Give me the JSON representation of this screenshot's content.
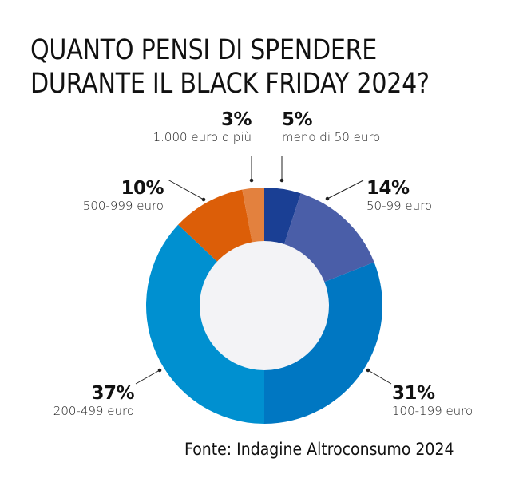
{
  "title": {
    "line1": "QUANTO PENSI DI SPENDERE",
    "line2": "DURANTE IL BLACK FRIDAY 2024?"
  },
  "labels": {
    "s5": {
      "pct": "5%",
      "cat": "meno di 50 euro"
    },
    "s14": {
      "pct": "14%",
      "cat": "50-99 euro"
    },
    "s31": {
      "pct": "31%",
      "cat": "100-199 euro"
    },
    "s37": {
      "pct": "37%",
      "cat": "200-499 euro"
    },
    "s10": {
      "pct": "10%",
      "cat": "500-999 euro"
    },
    "s3": {
      "pct": "3%",
      "cat": "1.000 euro o più"
    }
  },
  "source": "Fonte: Indagine Altroconsumo 2024",
  "colors": {
    "s5": "#1a3f94",
    "s14": "#4a5ea8",
    "s31": "#0077c2",
    "s37": "#0090d0",
    "s10": "#dc5e08",
    "s3": "#e3813e",
    "hole": "#f3f3f6"
  },
  "chart_data": {
    "type": "pie",
    "subtype": "donut",
    "title": "QUANTO PENSI DI SPENDERE DURANTE IL BLACK FRIDAY 2024?",
    "categories": [
      "meno di 50 euro",
      "50-99 euro",
      "100-199 euro",
      "200-499 euro",
      "500-999 euro",
      "1.000 euro o più"
    ],
    "values": [
      5,
      14,
      31,
      37,
      10,
      3
    ],
    "unit": "%",
    "start_angle": "12 o'clock, clockwise",
    "source": "Fonte: Indagine Altroconsumo 2024",
    "legend": "none (callout labels)"
  }
}
